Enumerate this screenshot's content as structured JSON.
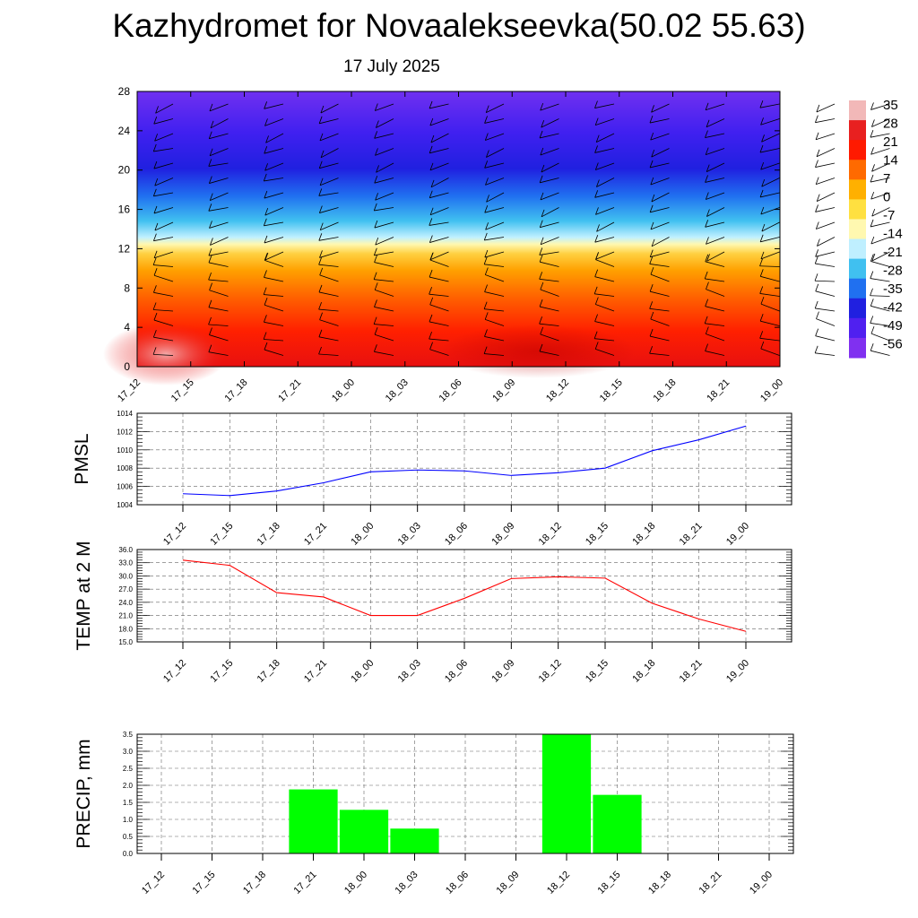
{
  "title": "Kazhydromet for Novaalekseevka(50.02 55.63)",
  "subtitle": "17 July 2025",
  "time_labels": [
    "17_12",
    "17_15",
    "17_18",
    "17_21",
    "18_00",
    "18_03",
    "18_06",
    "18_09",
    "18_12",
    "18_15",
    "18_18",
    "18_21",
    "19_00"
  ],
  "colorbar": {
    "labels": [
      "35",
      "28",
      "21",
      "14",
      "7",
      "0",
      "-7",
      "-14",
      "-21",
      "-28",
      "-35",
      "-42",
      "-49",
      "-56"
    ],
    "colors": [
      "#f2b8b8",
      "#e82020",
      "#ff1a00",
      "#ff6a00",
      "#ffb000",
      "#ffe040",
      "#fff8b0",
      "#bfefff",
      "#40c0f0",
      "#2070f0",
      "#2020e0",
      "#5020f0",
      "#8030f0"
    ]
  },
  "chart_data": [
    {
      "type": "heatmap",
      "y_axis_ticks": [
        "0",
        "4",
        "8",
        "12",
        "16",
        "20",
        "24",
        "28"
      ],
      "ylim": [
        0,
        28
      ],
      "x": [
        "17_12",
        "17_15",
        "17_18",
        "17_21",
        "18_00",
        "18_03",
        "18_06",
        "18_09",
        "18_12",
        "18_15",
        "18_18",
        "18_21",
        "19_00"
      ],
      "colorbar_range": [
        -56,
        35
      ],
      "overlay": "wind barbs"
    },
    {
      "type": "line",
      "ylabel": "PMSL",
      "y_axis_ticks": [
        "1004",
        "1006",
        "1008",
        "1010",
        "1012",
        "1014"
      ],
      "ylim": [
        1004,
        1014
      ],
      "x": [
        "17_12",
        "17_15",
        "17_18",
        "17_21",
        "18_00",
        "18_03",
        "18_06",
        "18_09",
        "18_12",
        "18_15",
        "18_18",
        "18_21",
        "19_00"
      ],
      "series": [
        {
          "values": [
            1005.2,
            1005.0,
            1005.5,
            1006.4,
            1007.6,
            1007.8,
            1007.7,
            1007.2,
            1007.5,
            1008.0,
            1009.9,
            1011.1,
            1012.6
          ],
          "color": "#0000ff"
        }
      ],
      "grid": true
    },
    {
      "type": "line",
      "ylabel": "TEMP at 2 M",
      "y_axis_ticks": [
        "15.0",
        "18.0",
        "21.0",
        "24.0",
        "27.0",
        "30.0",
        "33.0",
        "36.0"
      ],
      "ylim": [
        15,
        36
      ],
      "x": [
        "17_12",
        "17_15",
        "17_18",
        "17_21",
        "18_00",
        "18_03",
        "18_06",
        "18_09",
        "18_12",
        "18_15",
        "18_18",
        "18_21",
        "19_00"
      ],
      "series": [
        {
          "values": [
            33.6,
            32.4,
            26.2,
            25.2,
            21.0,
            21.0,
            24.9,
            29.4,
            29.8,
            29.5,
            23.8,
            20.2,
            17.4
          ],
          "color": "#ff0000"
        }
      ],
      "grid": true
    },
    {
      "type": "bar",
      "ylabel": "PRECIP, mm",
      "y_axis_ticks": [
        "0.0",
        "0.5",
        "1.0",
        "1.5",
        "2.0",
        "2.5",
        "3.0",
        "3.5"
      ],
      "ylim": [
        0,
        3.5
      ],
      "categories": [
        "17_12",
        "17_15",
        "17_18",
        "17_21",
        "18_00",
        "18_03",
        "18_06",
        "18_09",
        "18_12",
        "18_15",
        "18_18",
        "18_21",
        "19_00"
      ],
      "values": [
        0,
        0,
        0,
        1.88,
        1.28,
        0.73,
        0,
        0,
        3.5,
        1.72,
        0,
        0,
        0
      ],
      "color": "#00ff00",
      "grid": true
    }
  ]
}
